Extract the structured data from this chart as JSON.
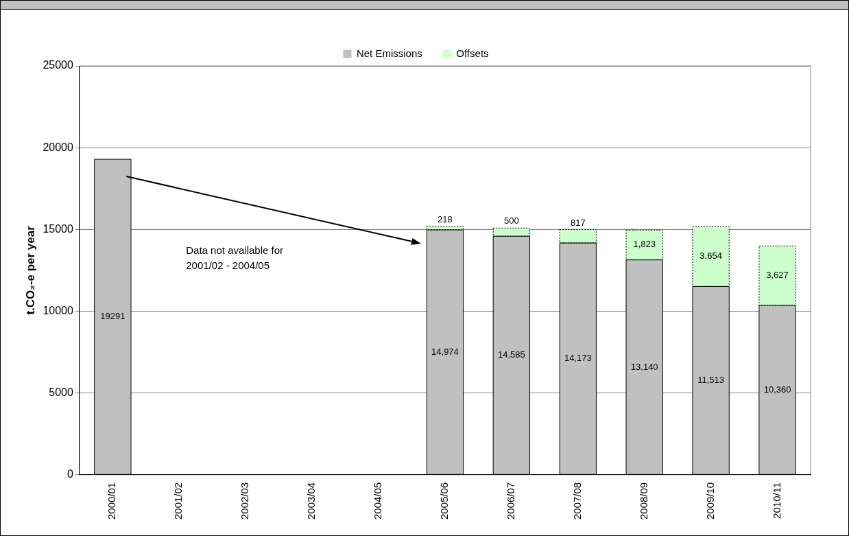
{
  "chart_data": {
    "type": "bar",
    "stacked": true,
    "ylabel": "t.CO₂-e per year",
    "categories": [
      "2000/01",
      "2001/02",
      "2002/03",
      "2003/04",
      "2004/05",
      "2005/06",
      "2006/07",
      "2007/08",
      "2008/09",
      "2009/10",
      "2010/11"
    ],
    "series": [
      {
        "name": "Net Emissions",
        "color": "#c0c0c0",
        "values": [
          19291,
          null,
          null,
          null,
          null,
          14974,
          14585,
          14173,
          13140,
          11513,
          10360
        ],
        "value_labels": [
          "19291",
          null,
          null,
          null,
          null,
          "14,974",
          "14,585",
          "14,173",
          "13,140",
          "11,513",
          "10,360"
        ],
        "line_style": "solid"
      },
      {
        "name": "Offsets",
        "color": "#ccffcc",
        "values": [
          null,
          null,
          null,
          null,
          null,
          218,
          500,
          817,
          1823,
          3654,
          3627
        ],
        "value_labels": [
          null,
          null,
          null,
          null,
          null,
          "218",
          "500",
          "817",
          "1,823",
          "3,654",
          "3,627"
        ],
        "line_style": "dotted"
      }
    ],
    "ylim": [
      0,
      25000
    ],
    "yticks": [
      0,
      5000,
      10000,
      15000,
      20000,
      25000
    ],
    "grid": "y",
    "legend": "top",
    "annotations": [
      "Data not available for 2001/02 - 2004/05"
    ]
  }
}
